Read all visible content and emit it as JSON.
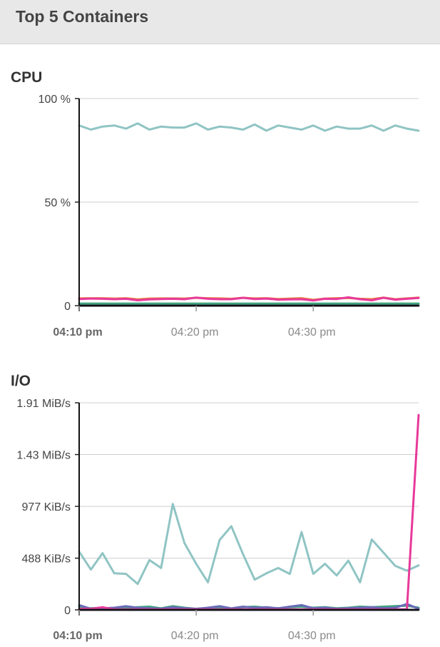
{
  "header": {
    "title": "Top 5 Containers"
  },
  "chart_data": [
    {
      "type": "line",
      "title": "CPU",
      "y_ticks": [
        "100 %",
        "50 %",
        "0"
      ],
      "ylim": [
        0,
        100
      ],
      "x_ticks": [
        "04:10 pm",
        "04:20 pm",
        "04:30 pm"
      ],
      "x_tick_bold": [
        true,
        false,
        false
      ],
      "x_tick_minutes": [
        10,
        20,
        30
      ],
      "x_range_minutes": [
        10,
        39
      ],
      "grid": true,
      "x": [
        10,
        11,
        12,
        13,
        14,
        15,
        16,
        17,
        18,
        19,
        20,
        21,
        22,
        23,
        24,
        25,
        26,
        27,
        28,
        29,
        30,
        31,
        32,
        33,
        34,
        35,
        36,
        37,
        38,
        39
      ],
      "series": [
        {
          "color": "#90c4c4",
          "values": [
            87,
            85,
            86.5,
            87,
            85.5,
            88,
            85,
            86.5,
            86,
            86,
            88,
            85,
            86.5,
            86,
            85,
            87.5,
            84.5,
            87,
            86,
            85,
            87,
            84.5,
            86.5,
            85.5,
            85.5,
            87,
            84.5,
            87,
            85.5,
            84.5
          ]
        },
        {
          "color": "#e8803a",
          "values": [
            3.5,
            3.6,
            3.6,
            3.4,
            3.6,
            3,
            3.4,
            3.5,
            3.5,
            3.4,
            3.8,
            3.6,
            3.5,
            3.3,
            3.8,
            3.5,
            3.6,
            3.2,
            3.4,
            3.6,
            2.8,
            3.4,
            3.6,
            3.7,
            3.3,
            3.1,
            3.9,
            3.1,
            3.5,
            3.9
          ]
        },
        {
          "color": "#e8399a",
          "values": [
            3.2,
            3.4,
            3.3,
            3.1,
            3.3,
            2.6,
            3,
            3.2,
            3.3,
            3.1,
            3.9,
            3.3,
            3.1,
            3.1,
            3.8,
            3.2,
            3.4,
            2.9,
            3,
            3.1,
            2.5,
            3.3,
            3.2,
            4,
            3.1,
            2.6,
            3.8,
            2.9,
            3.3,
            3.7
          ]
        },
        {
          "color": "#3fa37e",
          "values": [
            1,
            1,
            1,
            1,
            1,
            1,
            1,
            1,
            1,
            1,
            1,
            1,
            1,
            1,
            1,
            1,
            1,
            1,
            1,
            1,
            1,
            1,
            1,
            1,
            1,
            1,
            1,
            1,
            1,
            1
          ]
        },
        {
          "color": "#2e2e4a",
          "values": [
            0,
            0,
            0,
            0,
            0,
            0,
            0,
            0,
            0,
            0,
            0,
            0,
            0,
            0,
            0,
            0,
            0,
            0,
            0,
            0,
            0,
            0,
            0,
            0,
            0,
            0,
            0,
            0,
            0,
            0
          ]
        }
      ]
    },
    {
      "type": "line",
      "title": "I/O",
      "y_ticks": [
        "1.91 MiB/s",
        "1.43 MiB/s",
        "977 KiB/s",
        "488 KiB/s",
        "0"
      ],
      "y_tick_values": [
        1955,
        1466,
        977,
        488,
        0
      ],
      "ylim": [
        0,
        1955
      ],
      "y_unit": "KiB/s",
      "x_ticks": [
        "04:10 pm",
        "04:20 pm",
        "04:30 pm"
      ],
      "x_tick_bold": [
        true,
        false,
        false
      ],
      "x_tick_minutes": [
        10,
        20,
        30
      ],
      "x_range_minutes": [
        10,
        39
      ],
      "grid": true,
      "x": [
        10,
        11,
        12,
        13,
        14,
        15,
        16,
        17,
        18,
        19,
        20,
        21,
        22,
        23,
        24,
        25,
        26,
        27,
        28,
        29,
        30,
        31,
        32,
        33,
        34,
        35,
        36,
        37,
        38,
        39
      ],
      "series": [
        {
          "color": "#90c4c4",
          "values": [
            550,
            380,
            535,
            345,
            340,
            245,
            470,
            395,
            1000,
            630,
            435,
            260,
            660,
            790,
            525,
            285,
            345,
            395,
            340,
            735,
            340,
            435,
            325,
            465,
            260,
            665,
            540,
            415,
            370,
            420
          ]
        },
        {
          "color": "#3fa37e",
          "values": [
            30,
            15,
            20,
            10,
            20,
            25,
            30,
            15,
            35,
            20,
            10,
            15,
            20,
            10,
            25,
            30,
            20,
            15,
            25,
            30,
            20,
            25,
            15,
            20,
            30,
            25,
            30,
            35,
            40,
            20
          ]
        },
        {
          "color": "#6a6ab8",
          "values": [
            45,
            10,
            15,
            20,
            35,
            20,
            15,
            10,
            25,
            15,
            10,
            20,
            35,
            15,
            30,
            20,
            25,
            15,
            30,
            45,
            15,
            20,
            10,
            15,
            20,
            25,
            15,
            20,
            55,
            10
          ]
        },
        {
          "color": "#e8399a",
          "values": [
            10,
            10,
            25,
            5,
            5,
            5,
            5,
            5,
            5,
            5,
            5,
            5,
            5,
            5,
            5,
            5,
            5,
            5,
            5,
            5,
            5,
            5,
            5,
            5,
            5,
            5,
            5,
            5,
            5,
            1840
          ]
        },
        {
          "color": "#2e2e4a",
          "values": [
            0,
            0,
            0,
            0,
            0,
            0,
            0,
            0,
            0,
            0,
            0,
            0,
            0,
            0,
            0,
            0,
            0,
            0,
            0,
            0,
            0,
            0,
            0,
            0,
            0,
            0,
            0,
            0,
            0,
            0
          ]
        }
      ]
    }
  ]
}
